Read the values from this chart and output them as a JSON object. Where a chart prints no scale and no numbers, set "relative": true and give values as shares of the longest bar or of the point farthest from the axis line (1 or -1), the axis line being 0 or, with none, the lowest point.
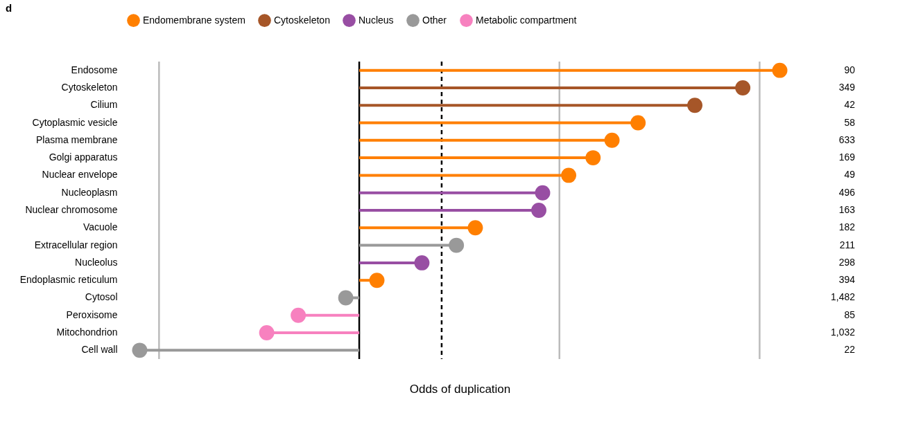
{
  "chart_data": {
    "type": "lollipop",
    "orientation": "horizontal",
    "relative": true,
    "title": "d",
    "xlabel": "Odds of duplication",
    "legend": "top",
    "marker": "circle",
    "categories": [
      "Endosome",
      "Cytoskeleton",
      "Cilium",
      "Cytoplasmic vesicle",
      "Plasma membrane",
      "Golgi apparatus",
      "Nuclear envelope",
      "Nucleoplasm",
      "Nuclear chromosome",
      "Vacuole",
      "Extracellular region",
      "Nucleolus",
      "Endoplasmic reticulum",
      "Cytosol",
      "Peroxisome",
      "Mitochondrion",
      "Cell wall"
    ],
    "series": [
      {
        "name": "Endomembrane system",
        "color": "#ff7f00",
        "values": [
          1.0,
          null,
          null,
          0.663,
          0.601,
          0.556,
          0.498,
          null,
          null,
          0.276,
          null,
          null,
          0.042,
          null,
          null,
          null,
          null
        ]
      },
      {
        "name": "Cytoskeleton",
        "color": "#a65628",
        "values": [
          null,
          0.912,
          0.798,
          null,
          null,
          null,
          null,
          null,
          null,
          null,
          null,
          null,
          null,
          null,
          null,
          null,
          null
        ]
      },
      {
        "name": "Nucleus",
        "color": "#984ea3",
        "values": [
          null,
          null,
          null,
          null,
          null,
          null,
          null,
          0.436,
          0.427,
          null,
          null,
          0.149,
          null,
          null,
          null,
          null,
          null
        ]
      },
      {
        "name": "Other",
        "color": "#999999",
        "values": [
          null,
          null,
          null,
          null,
          null,
          null,
          null,
          null,
          null,
          null,
          0.231,
          null,
          null,
          -0.032,
          null,
          null,
          -0.522
        ]
      },
      {
        "name": "Metabolic compartment",
        "color": "#f781bf",
        "values": [
          null,
          null,
          null,
          null,
          null,
          null,
          null,
          null,
          null,
          null,
          null,
          null,
          null,
          null,
          -0.145,
          -0.22,
          null
        ]
      }
    ],
    "ref_lines": [
      {
        "axis": "x",
        "value": -0.476,
        "color": "#bbbbbb",
        "line_style": "solid"
      },
      {
        "axis": "x",
        "value": 0.476,
        "color": "#bbbbbb",
        "line_style": "solid"
      },
      {
        "axis": "x",
        "value": 0.952,
        "color": "#bbbbbb",
        "line_style": "solid"
      },
      {
        "axis": "x",
        "value": 0,
        "color": "#000000",
        "line_style": "solid"
      },
      {
        "axis": "x",
        "value": 0.196,
        "color": "#000000",
        "line_style": "dashed"
      }
    ],
    "annotations": [
      "90",
      "349",
      "42",
      "58",
      "633",
      "169",
      "49",
      "496",
      "163",
      "182",
      "211",
      "298",
      "394",
      "1,482",
      "85",
      "1,032",
      "22"
    ]
  }
}
